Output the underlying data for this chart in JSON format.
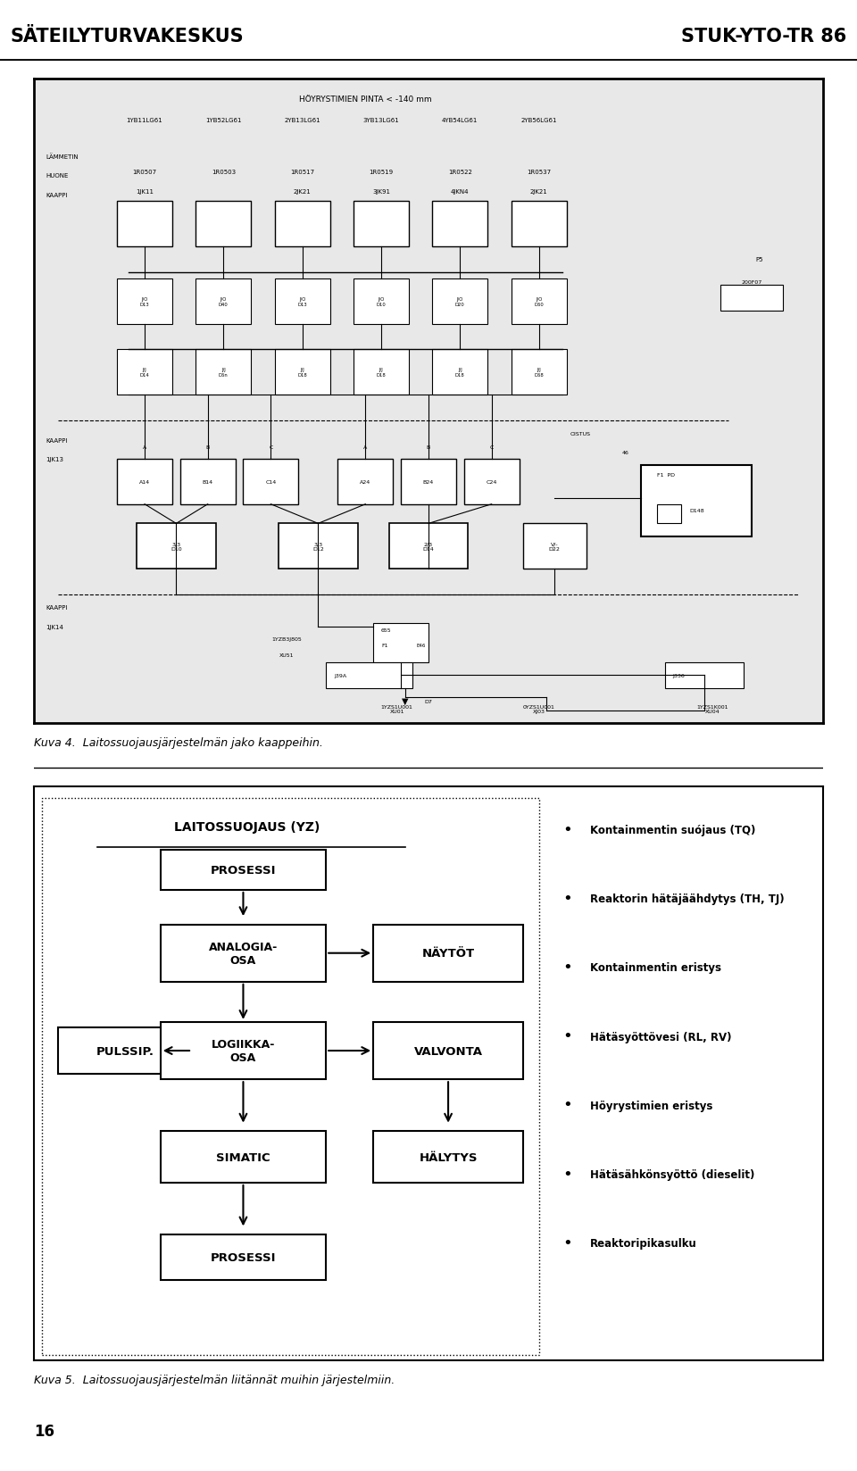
{
  "page_bg": "#ffffff",
  "header_left": "SÄTEILYTURVAKESKUS",
  "header_right": "STUK-YTO-TR 86",
  "fig1_caption": "Kuva 4.  Laitossuojausjärjestelmän jako kaappeihin.",
  "fig2_caption": "Kuva 5.  Laitossuojausjärjestelmän liitännät muihin järjestelmiin.",
  "col_labels": [
    "1YB11LG61",
    "1YB52LG61",
    "2YB13LG61",
    "3YB13LG61",
    "4YB54LG61",
    "2YB56LG61"
  ],
  "sensor_names": [
    "1R0507",
    "1R0503",
    "1R0517",
    "1R0519",
    "1R0522",
    "1R0537"
  ],
  "sensor_kaappi": [
    "1JK11",
    "",
    "2JK21",
    "3JK91",
    "4JKN4",
    "2JK21"
  ],
  "bullet_items": [
    "Kontainmentin suójaus (TQ)",
    "Reaktorin hätäjäähdytys (TH, TJ)",
    "Kontainmentin eristys",
    "Hätäsyöttövesi (RL, RV)",
    "Höyrystimien eristys",
    "Hätäsähkönsyöttö (dieselit)",
    "Reaktoripikasulku"
  ]
}
